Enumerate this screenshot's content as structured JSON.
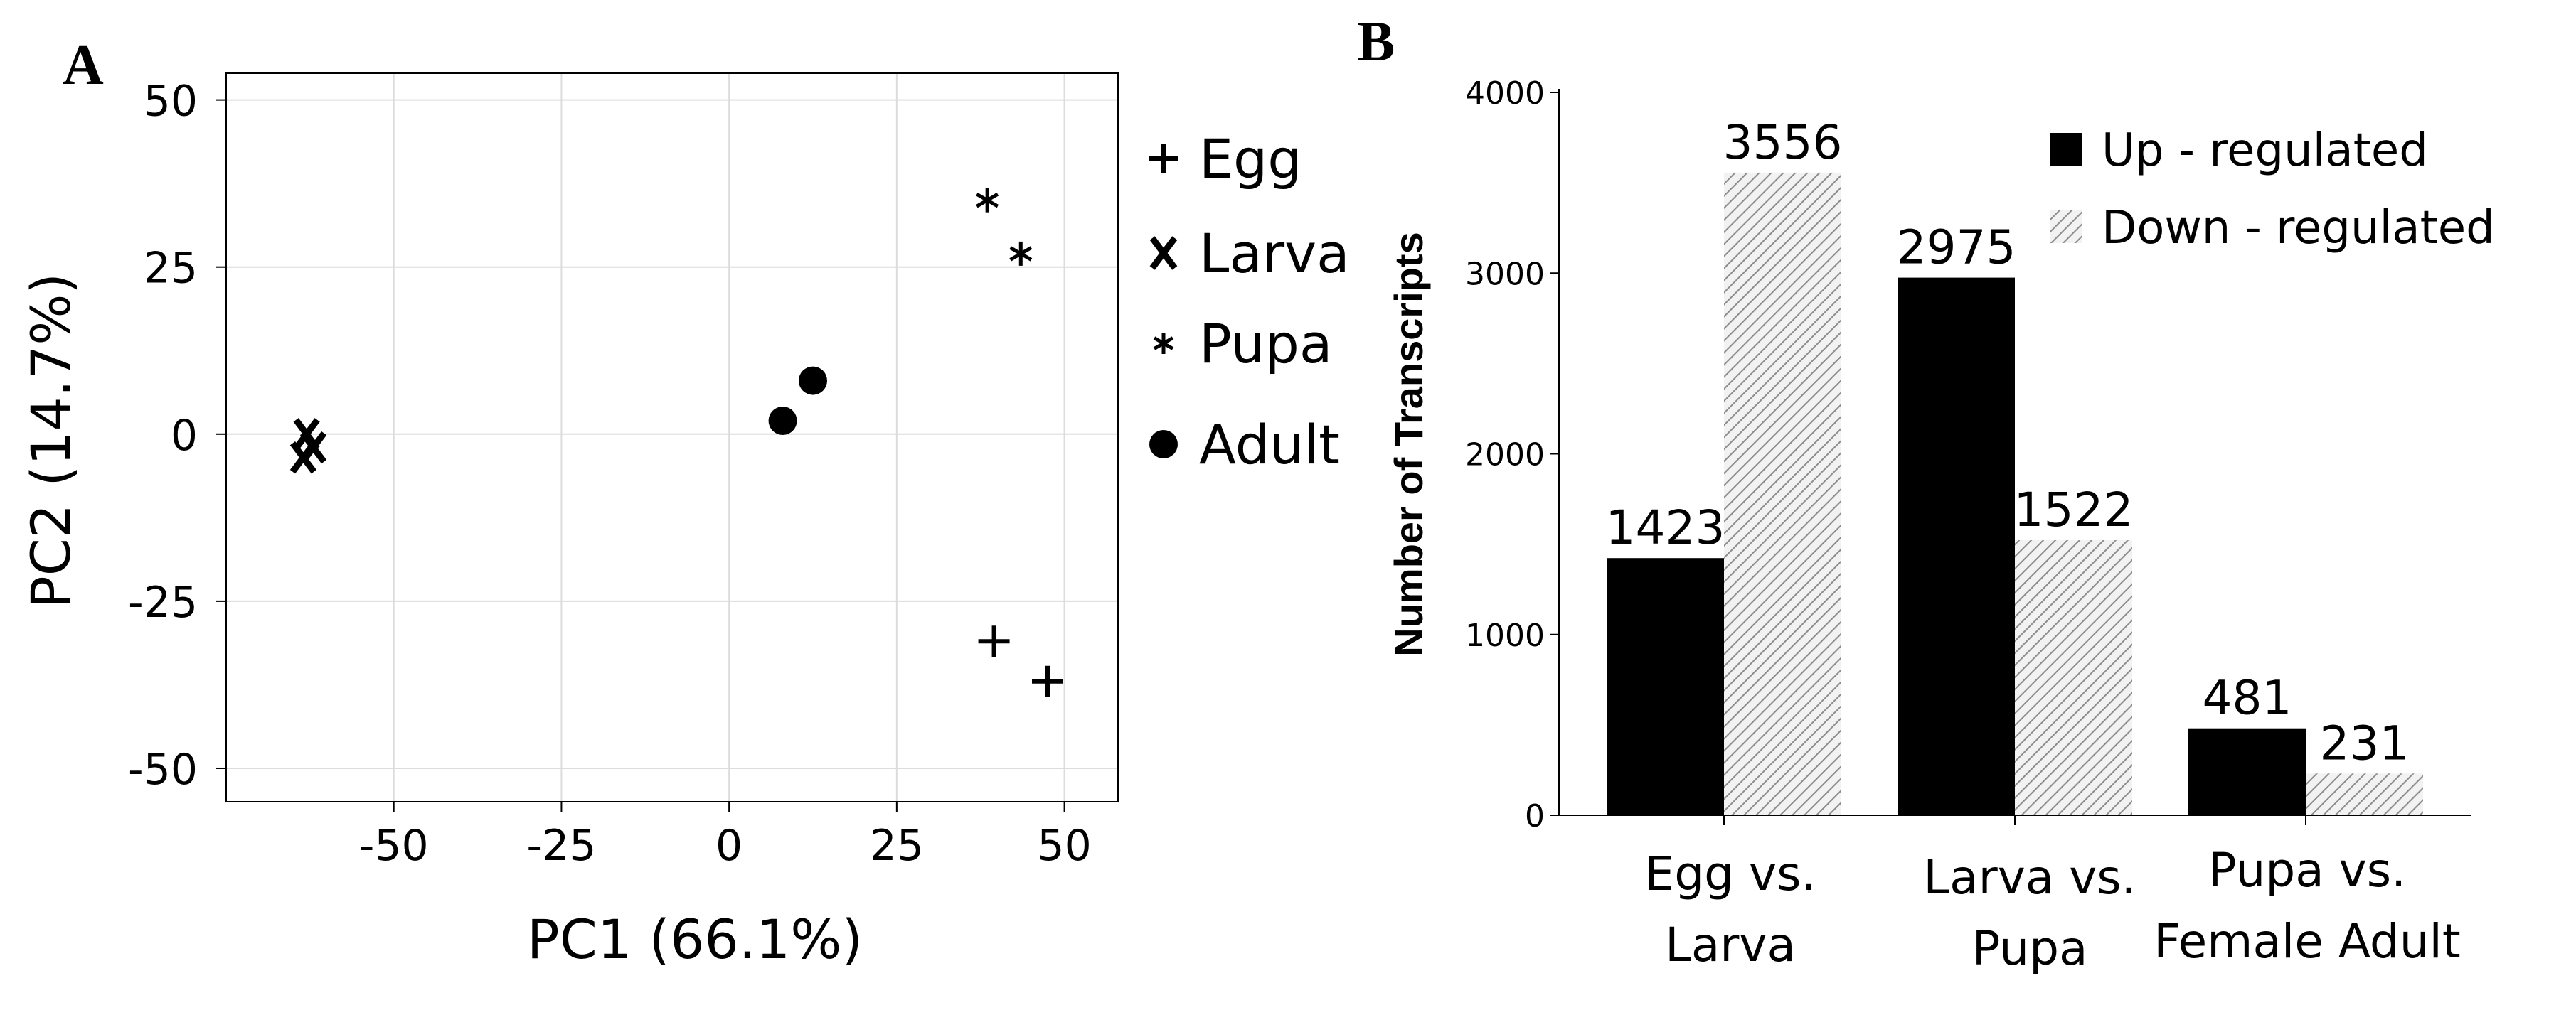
{
  "chart_data": [
    {
      "panel": "A",
      "type": "scatter",
      "xlabel": "PC1 (66.1%)",
      "ylabel": "PC2 (14.7%)",
      "xlim": [
        -75,
        58
      ],
      "ylim": [
        -55,
        54
      ],
      "xticks": [
        -50,
        -25,
        0,
        25,
        50
      ],
      "yticks": [
        50,
        25,
        0,
        -25,
        -50
      ],
      "grid": true,
      "legend_position": "right",
      "series": [
        {
          "name": "Egg",
          "marker": "+",
          "points": [
            [
              39.5,
              -31
            ],
            [
              47.5,
              -37
            ]
          ]
        },
        {
          "name": "Larva",
          "marker": "x",
          "points": [
            [
              -63,
              0
            ],
            [
              -63.5,
              -3.5
            ],
            [
              -62,
              -2
            ]
          ]
        },
        {
          "name": "Pupa",
          "marker": "*",
          "points": [
            [
              38.5,
              35
            ],
            [
              43.5,
              27
            ]
          ]
        },
        {
          "name": "Adult",
          "marker": "circle",
          "points": [
            [
              8,
              2
            ],
            [
              12.5,
              8
            ]
          ]
        }
      ]
    },
    {
      "panel": "B",
      "type": "bar",
      "categories": [
        "Egg vs. Larva",
        "Larva vs. Pupa",
        "Pupa vs. Female Adult"
      ],
      "category_lines": [
        [
          "Egg vs.",
          "Larva"
        ],
        [
          "Larva vs.",
          "Pupa"
        ],
        [
          "Pupa vs.",
          "Female Adult"
        ]
      ],
      "ylabel": "Number of Transcripts",
      "ylim": [
        0,
        4000
      ],
      "yticks": [
        0,
        1000,
        2000,
        3000,
        4000
      ],
      "legend_position": "top-right",
      "series": [
        {
          "name": "Up - regulated",
          "values": [
            1423,
            2975,
            481
          ],
          "value_labels": [
            "1423",
            "2975",
            "481"
          ],
          "color": "#000000"
        },
        {
          "name": "Down - regulated",
          "values": [
            3556,
            1522,
            231
          ],
          "value_labels": [
            "3556",
            "1522",
            "231"
          ],
          "color": "#c8c8c8",
          "pattern": "hatched"
        }
      ]
    }
  ],
  "panels": {
    "a_letter": "A",
    "b_letter": "B"
  },
  "colors": {
    "ink": "#000000",
    "grid": "#dcdcdc",
    "hatch_bg": "#f2f2f2",
    "hatch_line": "#8c8c8c"
  }
}
